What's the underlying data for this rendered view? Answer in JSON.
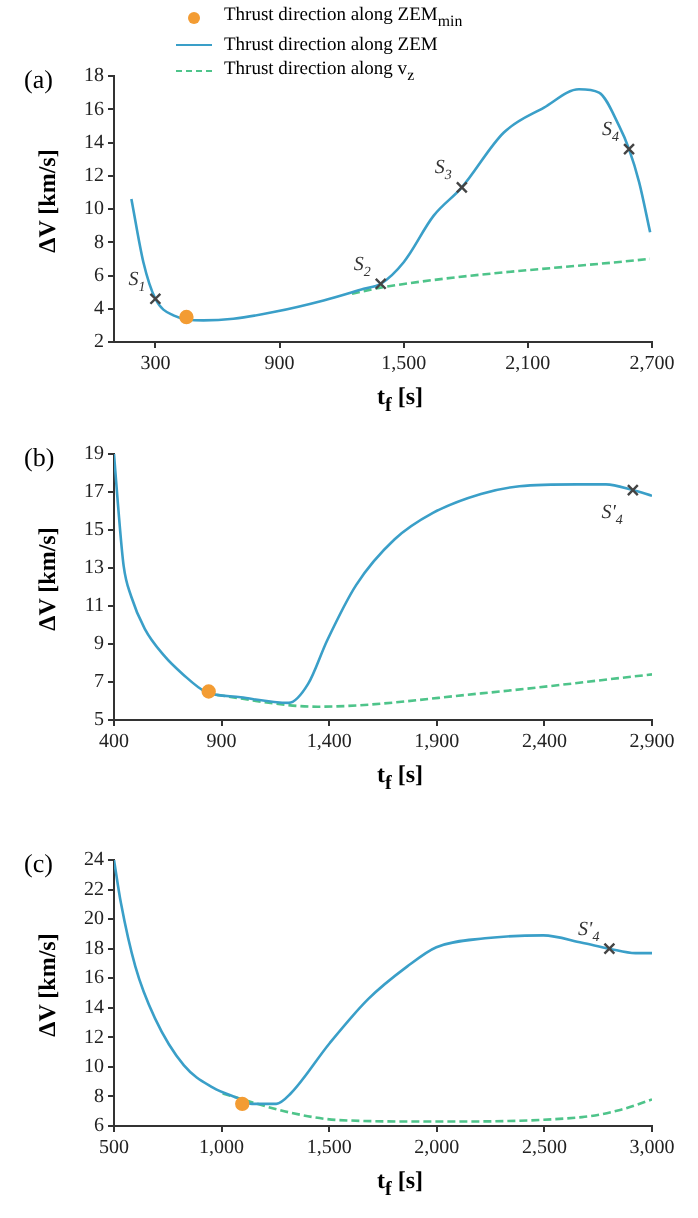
{
  "chart_data": [
    {
      "type": "line",
      "title": "(a)",
      "xlabel": "t$_{f}$ [s]",
      "ylabel": "ΔV [km/s]",
      "xlim": [
        100,
        2700
      ],
      "xticks": [
        300,
        {
          "value": 900,
          "label": "900"
        },
        {
          "value": 1500,
          "label": "1,500"
        },
        {
          "value": 2100,
          "label": "2,100"
        },
        {
          "value": 2700,
          "label": "2,700"
        }
      ],
      "ylim": [
        2,
        18
      ],
      "yticks": [
        2,
        4,
        6,
        8,
        10,
        12,
        14,
        16,
        18
      ],
      "legend": "top left",
      "series": [
        {
          "name": "Thrust direction along ZEM$_{min}$",
          "type": "scatter",
          "marker": "circle",
          "color": "#f39c33",
          "x": [
            450
          ],
          "values": [
            3.5
          ]
        },
        {
          "name": "Thrust direction along ZEM",
          "type": "line",
          "marker": "none",
          "line_style": "solid",
          "color": "#3a9fc8",
          "x": [
            184,
            242,
            300,
            387,
            532,
            677,
            871,
            1113,
            1307,
            1389,
            1500,
            1645,
            1781,
            1984,
            2178,
            2347,
            2444,
            2541,
            2589,
            2638,
            2691
          ],
          "values": [
            10.6,
            6.8,
            4.6,
            3.6,
            3.3,
            3.4,
            3.8,
            4.5,
            5.2,
            5.5,
            6.8,
            9.6,
            11.3,
            14.6,
            16.1,
            17.2,
            17.0,
            15.0,
            13.6,
            11.6,
            8.6
          ]
        },
        {
          "name": "Thrust direction along v$_{z}$",
          "type": "line",
          "marker": "none",
          "line_style": "dashed",
          "color": "#4ec48a",
          "x": [
            1250,
            1400,
            2690
          ],
          "values": [
            4.9,
            5.3,
            7.0
          ]
        },
        {
          "type": "scatter",
          "marker": "cross",
          "color": "#444444",
          "x": [
            300,
            1389,
            1781,
            2589
          ],
          "values": [
            4.6,
            5.5,
            11.3,
            13.6
          ]
        }
      ],
      "annotations": [
        {
          "text": "S$_{1}$",
          "x": 300,
          "y": 4.6
        },
        {
          "text": "S$_{2}$",
          "x": 1389,
          "y": 5.5
        },
        {
          "text": "S$_{3}$",
          "x": 1781,
          "y": 11.3
        },
        {
          "text": "S$_{4}$",
          "x": 2589,
          "y": 13.6
        }
      ]
    },
    {
      "type": "line",
      "title": "(b)",
      "xlabel": "t$_{f}$ [s]",
      "ylabel": "ΔV [km/s]",
      "xlim": [
        400,
        2900
      ],
      "xticks": [
        400,
        900,
        {
          "value": 1400,
          "label": "1,400"
        },
        {
          "value": 1900,
          "label": "1,900"
        },
        {
          "value": 2400,
          "label": "2,400"
        },
        {
          "value": 2900,
          "label": "2,900"
        }
      ],
      "ylim": [
        5,
        19
      ],
      "yticks": [
        5,
        7,
        9,
        11,
        13,
        15,
        17,
        19
      ],
      "series": [
        {
          "type": "line",
          "marker": "none",
          "line_style": "solid",
          "color": "#3a9fc8",
          "x": [
            400,
            418,
            445,
            480,
            543,
            632,
            721,
            824,
            989,
            1212,
            1302,
            1391,
            1525,
            1703,
            1882,
            2105,
            2284,
            2552,
            2686,
            2811,
            2900
          ],
          "values": [
            19.0,
            16.4,
            13.1,
            11.5,
            9.8,
            8.4,
            7.4,
            6.5,
            6.2,
            5.9,
            6.9,
            9.2,
            12.1,
            14.5,
            15.9,
            16.9,
            17.3,
            17.4,
            17.4,
            17.1,
            16.8
          ]
        },
        {
          "type": "line",
          "marker": "none",
          "line_style": "dashed",
          "color": "#4ec48a",
          "x": [
            824,
            1346,
            2105,
            2900
          ],
          "values": [
            6.4,
            5.7,
            6.4,
            7.4
          ]
        },
        {
          "type": "scatter",
          "marker": "circle",
          "color": "#f39c33",
          "x": [
            840
          ],
          "values": [
            6.5
          ]
        },
        {
          "type": "scatter",
          "marker": "cross",
          "color": "#444444",
          "x": [
            2811
          ],
          "values": [
            17.1
          ]
        }
      ],
      "annotations": [
        {
          "text": "S'$_{4}$",
          "x": 2811,
          "y": 17.1
        }
      ]
    },
    {
      "type": "line",
      "title": "(c)",
      "xlabel": "t$_{f}$ [s]",
      "ylabel": "ΔV [km/s]",
      "xlim": [
        500,
        3000
      ],
      "xticks": [
        500,
        {
          "value": 1000,
          "label": "1,000"
        },
        {
          "value": 1500,
          "label": "1,500"
        },
        {
          "value": 2000,
          "label": "2,000"
        },
        {
          "value": 2500,
          "label": "2,500"
        },
        {
          "value": 3000,
          "label": "3,000"
        }
      ],
      "ylim": [
        6,
        24
      ],
      "yticks": [
        6,
        8,
        10,
        12,
        14,
        16,
        18,
        20,
        22,
        24
      ],
      "series": [
        {
          "type": "line",
          "marker": "none",
          "line_style": "solid",
          "color": "#3a9fc8",
          "x": [
            500,
            532,
            599,
            690,
            825,
            960,
            1073,
            1141,
            1254,
            1321,
            1502,
            1682,
            1863,
            1998,
            2224,
            2495,
            2675,
            2802,
            2923,
            3000
          ],
          "values": [
            24.0,
            21.1,
            16.8,
            13.3,
            10.1,
            8.6,
            7.9,
            7.5,
            7.5,
            8.2,
            11.6,
            14.6,
            16.8,
            18.1,
            18.7,
            18.9,
            18.4,
            18.0,
            17.7,
            17.7
          ]
        },
        {
          "type": "line",
          "marker": "none",
          "line_style": "dashed",
          "color": "#4ec48a",
          "x": [
            1005,
            1321,
            1547,
            1998,
            2675,
            2856,
            3000
          ],
          "values": [
            8.2,
            6.9,
            6.4,
            6.3,
            6.6,
            7.1,
            7.8
          ]
        },
        {
          "type": "scatter",
          "marker": "circle",
          "color": "#f39c33",
          "x": [
            1096
          ],
          "values": [
            7.5
          ]
        },
        {
          "type": "scatter",
          "marker": "cross",
          "color": "#444444",
          "x": [
            2802
          ],
          "values": [
            18.0
          ]
        }
      ],
      "annotations": [
        {
          "text": "S'$_{4}$",
          "x": 2802,
          "y": 18.0
        }
      ]
    }
  ]
}
